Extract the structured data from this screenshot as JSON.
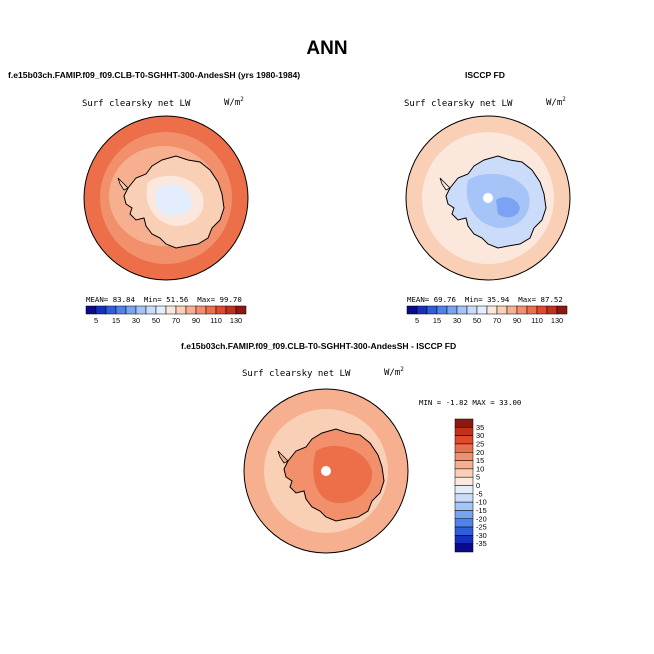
{
  "title": "ANN",
  "panels": {
    "model": {
      "title": "f.e15b03ch.FAMIP.f09_f09.CLB-T0-SGHHT-300-AndesSH (yrs 1980-1984)",
      "variable": "Surf clearsky net LW",
      "units": "W/m",
      "units_exp": "2",
      "mean_label": "MEAN=",
      "mean": "83.84",
      "min_label": "Min=",
      "min": "51.56",
      "max_label": "Max=",
      "max": "99.70"
    },
    "obs": {
      "title": "ISCCP FD",
      "variable": "Surf clearsky net LW",
      "units": "W/m",
      "units_exp": "2",
      "mean_label": "MEAN=",
      "mean": "69.76",
      "min_label": "Min=",
      "min": "35.94",
      "max_label": "Max=",
      "max": "87.52"
    },
    "diff": {
      "title": "f.e15b03ch.FAMIP.f09_f09.CLB-T0-SGHHT-300-AndesSH - ISCCP FD",
      "variable": "Surf clearsky net LW",
      "units": "W/m",
      "units_exp": "2",
      "minmax": "MIN =  -1.82 MAX =  33.00"
    }
  },
  "chart_data": [
    {
      "type": "heatmap",
      "projection": "south-polar-stereographic",
      "panel": "model",
      "title": "f.e15b03ch.FAMIP.f09_f09.CLB-T0-SGHHT-300-AndesSH (yrs 1980-1984)",
      "variable": "Surf clearsky net LW",
      "mean": 83.84,
      "min": 51.56,
      "max": 99.7,
      "colorbar": {
        "orientation": "horizontal",
        "levels": [
          5,
          15,
          30,
          50,
          70,
          90,
          110,
          130
        ],
        "bins": 16,
        "colors": [
          "#0a0a8c",
          "#1530bf",
          "#2e5fd8",
          "#4f83ea",
          "#7aa4f3",
          "#a6c4f7",
          "#cadcfa",
          "#e4edfb",
          "#fbe7dc",
          "#f9cfb6",
          "#f6b08f",
          "#f2906c",
          "#ec6f4a",
          "#dd4b2c",
          "#c0321c",
          "#8e1711"
        ]
      },
      "field_description": {
        "ocean": 95,
        "coast": 80,
        "interior": 55
      }
    },
    {
      "type": "heatmap",
      "projection": "south-polar-stereographic",
      "panel": "obs",
      "title": "ISCCP FD",
      "variable": "Surf clearsky net LW",
      "mean": 69.76,
      "min": 35.94,
      "max": 87.52,
      "colorbar": {
        "orientation": "horizontal",
        "levels": [
          5,
          15,
          30,
          50,
          70,
          90,
          110,
          130
        ],
        "bins": 16,
        "colors": [
          "#0a0a8c",
          "#1530bf",
          "#2e5fd8",
          "#4f83ea",
          "#7aa4f3",
          "#a6c4f7",
          "#cadcfa",
          "#e4edfb",
          "#fbe7dc",
          "#f9cfb6",
          "#f6b08f",
          "#f2906c",
          "#ec6f4a",
          "#dd4b2c",
          "#c0321c",
          "#8e1711"
        ]
      },
      "field_description": {
        "ocean": 80,
        "coast": 65,
        "interior": 40
      }
    },
    {
      "type": "heatmap",
      "projection": "south-polar-stereographic",
      "panel": "diff",
      "title": "f.e15b03ch.FAMIP.f09_f09.CLB-T0-SGHHT-300-AndesSH - ISCCP FD",
      "variable": "Surf clearsky net LW",
      "min": -1.82,
      "max": 33.0,
      "colorbar": {
        "orientation": "vertical",
        "levels": [
          35,
          30,
          25,
          20,
          15,
          10,
          5,
          0,
          -5,
          -10,
          -15,
          -20,
          -25,
          -30,
          -35
        ],
        "bins": 16,
        "colors": [
          "#8e1711",
          "#c0321c",
          "#dd4b2c",
          "#ec6f4a",
          "#f2906c",
          "#f6b08f",
          "#f9cfb6",
          "#fbe7dc",
          "#e4edfb",
          "#cadcfa",
          "#a6c4f7",
          "#7aa4f3",
          "#4f83ea",
          "#2e5fd8",
          "#1530bf",
          "#0a0a8c"
        ]
      },
      "field_description": {
        "ocean": 15,
        "coast": 10,
        "interior": 22
      }
    }
  ]
}
